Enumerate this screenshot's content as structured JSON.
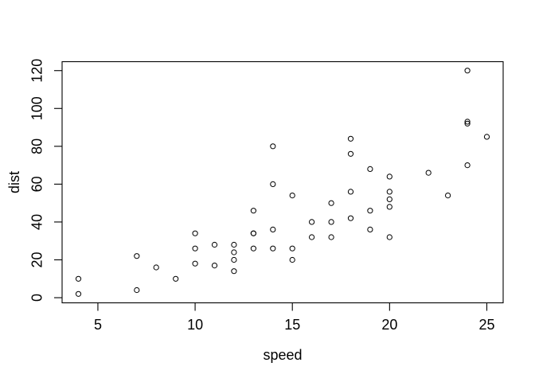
{
  "figure": {
    "background": "#ffffff",
    "foreground": "#000000"
  },
  "chart_data": {
    "type": "scatter",
    "title": "",
    "xlabel": "speed",
    "ylabel": "dist",
    "x_ticks": [
      5,
      10,
      15,
      20,
      25
    ],
    "y_ticks": [
      0,
      20,
      40,
      60,
      80,
      100,
      120
    ],
    "xlim": [
      3.16,
      25.84
    ],
    "ylim": [
      -2.72,
      124.72
    ],
    "grid": false,
    "legend_position": "none",
    "marker": "open-circle",
    "marker_color": "#000000",
    "points": [
      [
        4,
        2
      ],
      [
        4,
        10
      ],
      [
        7,
        4
      ],
      [
        7,
        22
      ],
      [
        8,
        16
      ],
      [
        9,
        10
      ],
      [
        10,
        18
      ],
      [
        10,
        26
      ],
      [
        10,
        34
      ],
      [
        11,
        17
      ],
      [
        11,
        28
      ],
      [
        12,
        14
      ],
      [
        12,
        20
      ],
      [
        12,
        24
      ],
      [
        12,
        28
      ],
      [
        13,
        26
      ],
      [
        13,
        34
      ],
      [
        13,
        34
      ],
      [
        13,
        46
      ],
      [
        14,
        26
      ],
      [
        14,
        36
      ],
      [
        14,
        60
      ],
      [
        14,
        80
      ],
      [
        15,
        20
      ],
      [
        15,
        26
      ],
      [
        15,
        54
      ],
      [
        16,
        32
      ],
      [
        16,
        40
      ],
      [
        17,
        32
      ],
      [
        17,
        40
      ],
      [
        17,
        50
      ],
      [
        18,
        42
      ],
      [
        18,
        56
      ],
      [
        18,
        76
      ],
      [
        18,
        84
      ],
      [
        19,
        36
      ],
      [
        19,
        46
      ],
      [
        19,
        68
      ],
      [
        20,
        32
      ],
      [
        20,
        48
      ],
      [
        20,
        52
      ],
      [
        20,
        56
      ],
      [
        20,
        64
      ],
      [
        22,
        66
      ],
      [
        23,
        54
      ],
      [
        24,
        70
      ],
      [
        24,
        92
      ],
      [
        24,
        93
      ],
      [
        24,
        120
      ],
      [
        25,
        85
      ]
    ]
  }
}
